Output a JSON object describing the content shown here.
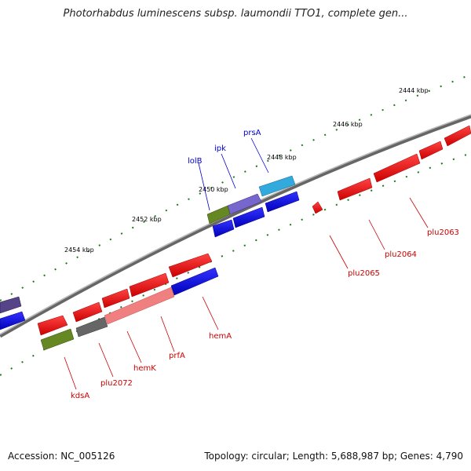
{
  "title": "Photorhabdus luminescens subsp. laumondii TTO1, complete gen...",
  "accession": "Accession: NC_005126",
  "topology": "Topology: circular; Length: 5,688,987 bp; Genes: 4,790",
  "colors": {
    "forward_gene": "#ff0000",
    "reverse_gene": "#0000ff",
    "label_forward": "#cc0000",
    "label_reverse": "#0000cc",
    "backbone": "#8a8a8a",
    "tick": "#1a7a1a"
  },
  "kbp_ticks": [
    "2444 kbp",
    "2446 kbp",
    "2448 kbp",
    "2450 kbp",
    "2452 kbp",
    "2454 kbp"
  ],
  "genes_above": [
    {
      "name": "lolB"
    },
    {
      "name": "ipk"
    },
    {
      "name": "prsA"
    }
  ],
  "genes_below": [
    {
      "name": "plu2063"
    },
    {
      "name": "plu2064"
    },
    {
      "name": "plu2065"
    },
    {
      "name": "hemA"
    },
    {
      "name": "prfA"
    },
    {
      "name": "hemK"
    },
    {
      "name": "plu2072"
    },
    {
      "name": "kdsA"
    }
  ]
}
